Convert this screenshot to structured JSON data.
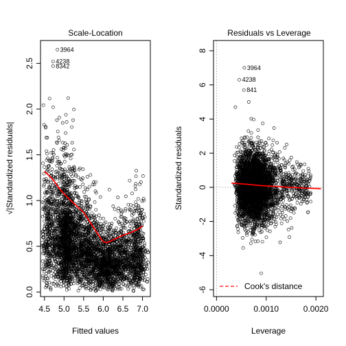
{
  "chart_data": [
    {
      "type": "scatter",
      "title": "Scale-Location",
      "xlabel": "Fitted values",
      "ylabel": "√|Standardized residuals|",
      "xlim": [
        4.4,
        7.2
      ],
      "ylim": [
        -0.05,
        2.75
      ],
      "x_ticks": [
        4.5,
        5.0,
        5.5,
        6.0,
        6.5,
        7.0
      ],
      "x_tick_labels": [
        "4.5",
        "5.0",
        "5.5",
        "6.0",
        "6.5",
        "7.0"
      ],
      "y_ticks": [
        0.0,
        0.5,
        1.0,
        1.5,
        2.0,
        2.5
      ],
      "y_tick_labels": [
        "0.0",
        "0.5",
        "1.0",
        "1.5",
        "2.0",
        "2.5"
      ],
      "labeled_points": [
        {
          "label": "3964",
          "x": 4.83,
          "y": 2.65
        },
        {
          "label": "4238",
          "x": 4.72,
          "y": 2.52
        },
        {
          "label": "8342",
          "x": 4.72,
          "y": 2.47
        }
      ],
      "smoother": {
        "color": "#ff0000",
        "x": [
          4.5,
          4.7,
          4.9,
          5.1,
          5.3,
          5.5,
          5.7,
          5.9,
          6.0,
          6.1,
          6.3,
          6.5,
          6.7,
          6.9,
          7.0
        ],
        "y": [
          1.32,
          1.24,
          1.12,
          1.03,
          0.95,
          0.87,
          0.74,
          0.61,
          0.55,
          0.54,
          0.58,
          0.62,
          0.65,
          0.69,
          0.72
        ]
      }
    },
    {
      "type": "scatter",
      "title": "Residuals vs Leverage",
      "xlabel": "Leverage",
      "ylabel": "Standardized residuals",
      "xlim": [
        -6e-05,
        0.00215
      ],
      "ylim": [
        -6.4,
        8.6
      ],
      "x_ticks": [
        0.0,
        0.001,
        0.002
      ],
      "x_tick_labels": [
        "0.0000",
        "0.0010",
        "0.0020"
      ],
      "y_ticks": [
        -6,
        -4,
        -2,
        0,
        2,
        4,
        6,
        8
      ],
      "y_tick_labels": [
        "-6",
        "-4",
        "-2",
        "0",
        "2",
        "4",
        "6",
        "8"
      ],
      "labeled_points": [
        {
          "label": "3964",
          "x": 0.00056,
          "y": 7.0
        },
        {
          "label": "4238",
          "x": 0.00046,
          "y": 6.3
        },
        {
          "label": "841",
          "x": 0.00055,
          "y": 5.7
        }
      ],
      "smoother": {
        "color": "#ff0000",
        "x": [
          0.0003,
          0.0006,
          0.0009,
          0.0012,
          0.0015,
          0.0018,
          0.0021
        ],
        "y": [
          0.25,
          0.18,
          0.1,
          0.05,
          0.0,
          -0.05,
          -0.08
        ]
      },
      "legend": {
        "label": "Cook's distance",
        "position": "bottom-left",
        "line_color": "#ff0000"
      }
    }
  ]
}
